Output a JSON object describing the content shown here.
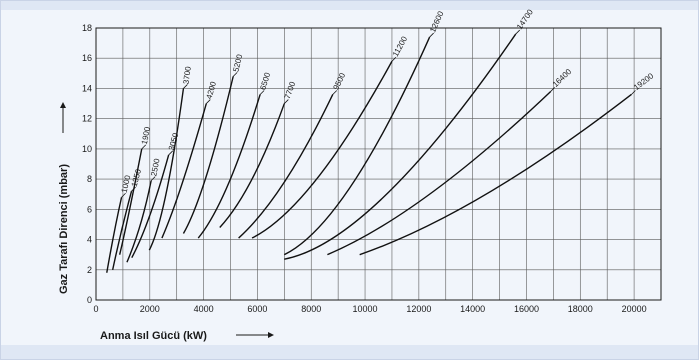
{
  "chart_data": {
    "type": "line",
    "title": "",
    "xlabel": "Anma Isıl Gücü (kW)",
    "ylabel": "Gaz Tarafı Direnci (mbar)",
    "xlim": [
      0,
      21000
    ],
    "ylim": [
      0,
      18
    ],
    "xticks": [
      0,
      2000,
      4000,
      6000,
      8000,
      10000,
      12000,
      14000,
      16000,
      18000,
      20000
    ],
    "yticks": [
      0,
      2,
      4,
      6,
      8,
      10,
      12,
      14,
      16,
      18
    ],
    "grid": true,
    "legend": "none",
    "series": [
      {
        "name": "1000",
        "points": [
          [
            400,
            1.8
          ],
          [
            680,
            4.5
          ],
          [
            950,
            6.8
          ]
        ]
      },
      {
        "name": "1350",
        "points": [
          [
            620,
            2.0
          ],
          [
            950,
            4.6
          ],
          [
            1320,
            7.2
          ]
        ]
      },
      {
        "name": "1900",
        "points": [
          [
            880,
            3.0
          ],
          [
            1250,
            6.0
          ],
          [
            1700,
            10.0
          ]
        ]
      },
      {
        "name": "2500",
        "points": [
          [
            1150,
            2.5
          ],
          [
            1650,
            5.0
          ],
          [
            2050,
            7.9
          ]
        ]
      },
      {
        "name": "3050",
        "points": [
          [
            1330,
            2.8
          ],
          [
            2000,
            5.6
          ],
          [
            2700,
            9.6
          ]
        ]
      },
      {
        "name": "3700",
        "points": [
          [
            1980,
            3.3
          ],
          [
            2600,
            7.0
          ],
          [
            3250,
            14.0
          ]
        ]
      },
      {
        "name": "4200",
        "points": [
          [
            2450,
            4.1
          ],
          [
            3200,
            7.7
          ],
          [
            4100,
            13.0
          ]
        ]
      },
      {
        "name": "5200",
        "points": [
          [
            3250,
            4.4
          ],
          [
            4100,
            8.2
          ],
          [
            5100,
            14.8
          ]
        ]
      },
      {
        "name": "6500",
        "points": [
          [
            3800,
            4.1
          ],
          [
            4900,
            7.6
          ],
          [
            6100,
            13.6
          ]
        ]
      },
      {
        "name": "7700",
        "points": [
          [
            4600,
            4.8
          ],
          [
            5800,
            8.0
          ],
          [
            7000,
            13.0
          ]
        ]
      },
      {
        "name": "9500",
        "points": [
          [
            5300,
            4.1
          ],
          [
            7000,
            7.8
          ],
          [
            8800,
            13.6
          ]
        ]
      },
      {
        "name": "11200",
        "points": [
          [
            5800,
            4.1
          ],
          [
            8200,
            8.0
          ],
          [
            11000,
            15.8
          ]
        ]
      },
      {
        "name": "12600",
        "points": [
          [
            7000,
            3.0
          ],
          [
            9500,
            7.6
          ],
          [
            12400,
            17.4
          ]
        ]
      },
      {
        "name": "14700",
        "points": [
          [
            7000,
            2.7
          ],
          [
            10800,
            7.0
          ],
          [
            15600,
            17.6
          ]
        ]
      },
      {
        "name": "16400",
        "points": [
          [
            8600,
            3.0
          ],
          [
            12400,
            7.0
          ],
          [
            16900,
            13.8
          ]
        ]
      },
      {
        "name": "19200",
        "points": [
          [
            9800,
            3.0
          ],
          [
            14500,
            7.0
          ],
          [
            19900,
            13.6
          ]
        ]
      }
    ],
    "curve_labels": [
      "1000",
      "1350",
      "1900",
      "2500",
      "3050",
      "3700",
      "4200",
      "5200",
      "6500",
      "7700",
      "9500",
      "11200",
      "12600",
      "14700",
      "16400",
      "19200"
    ]
  }
}
